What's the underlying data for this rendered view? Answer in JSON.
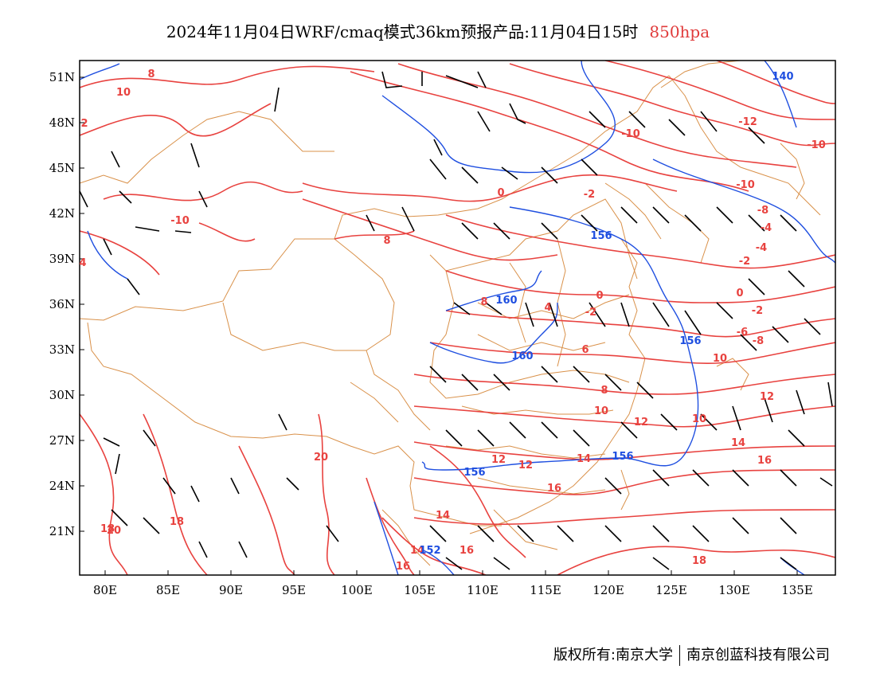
{
  "title": {
    "text": "2024年11月04日WRF/cmaq模式36km预报产品:11月04日15时",
    "level": "850hpa"
  },
  "colors": {
    "temperature": "#e8423f",
    "geopotential": "#1f4fe0",
    "border": "#d9914a",
    "wind": "#000000",
    "frame": "#000000"
  },
  "map": {
    "lon_range": [
      78,
      138
    ],
    "lat_range": [
      18,
      52
    ],
    "x_ticks": [
      "80E",
      "85E",
      "90E",
      "95E",
      "100E",
      "105E",
      "110E",
      "115E",
      "120E",
      "125E",
      "130E",
      "135E"
    ],
    "y_ticks": [
      "51N",
      "48N",
      "45N",
      "42N",
      "39N",
      "36N",
      "33N",
      "30N",
      "27N",
      "24N",
      "21N"
    ],
    "temperature_labels": [
      "8",
      "10",
      "2",
      "-10",
      "4",
      "8",
      "20",
      "18",
      "20",
      "8",
      "0",
      "-2",
      "4",
      "-2",
      "6",
      "8",
      "10",
      "12",
      "12",
      "14",
      "16",
      "16",
      "14",
      "16",
      "18",
      "-10",
      "-12",
      "-10",
      "-10",
      "-8",
      "-4",
      "-4",
      "-2",
      "0",
      "-2",
      "-6",
      "-8",
      "10",
      "12",
      "10",
      "14",
      "16",
      "18",
      "14",
      "12",
      "0"
    ],
    "geopotential_labels": [
      "140",
      "156",
      "160",
      "160",
      "156",
      "156",
      "152",
      "156"
    ],
    "icons": [
      "wind-barb-icon"
    ]
  },
  "credit": {
    "left": "版权所有:南京大学",
    "right": "南京创蓝科技有限公司"
  }
}
